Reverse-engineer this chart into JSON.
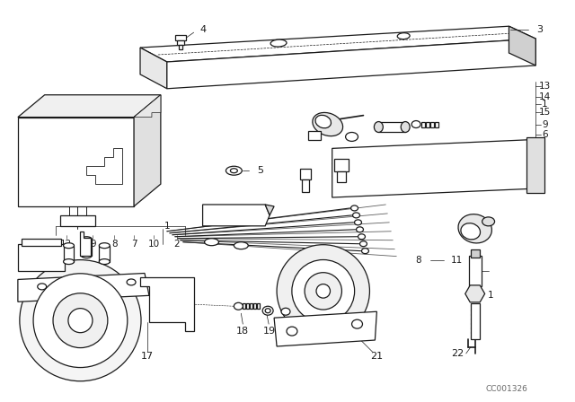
{
  "bg_color": "#ffffff",
  "line_color": "#1a1a1a",
  "watermark": "CC001326",
  "fig_w": 6.4,
  "fig_h": 4.48,
  "dpi": 100
}
